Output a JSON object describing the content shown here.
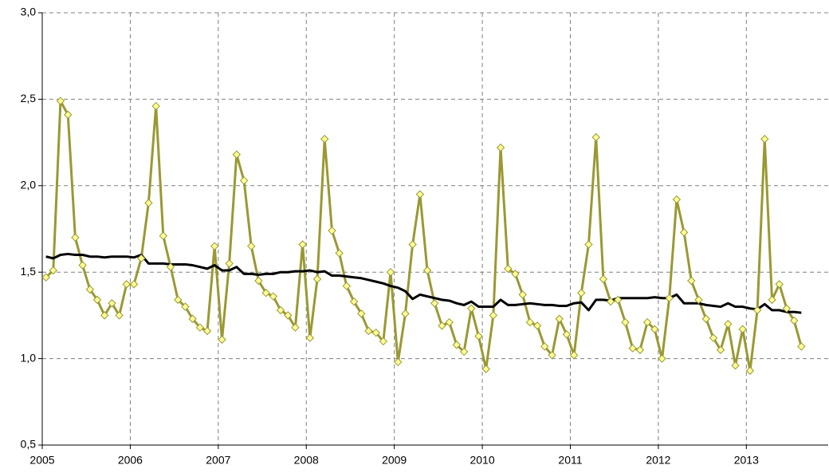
{
  "chart_data": {
    "type": "line",
    "x": [
      2005.042,
      2005.125,
      2005.208,
      2005.292,
      2005.375,
      2005.458,
      2005.542,
      2005.625,
      2005.708,
      2005.792,
      2005.875,
      2005.958,
      2006.042,
      2006.125,
      2006.208,
      2006.292,
      2006.375,
      2006.458,
      2006.542,
      2006.625,
      2006.708,
      2006.792,
      2006.875,
      2006.958,
      2007.042,
      2007.125,
      2007.208,
      2007.292,
      2007.375,
      2007.458,
      2007.542,
      2007.625,
      2007.708,
      2007.792,
      2007.875,
      2007.958,
      2008.042,
      2008.125,
      2008.208,
      2008.292,
      2008.375,
      2008.458,
      2008.542,
      2008.625,
      2008.708,
      2008.792,
      2008.875,
      2008.958,
      2009.042,
      2009.125,
      2009.208,
      2009.292,
      2009.375,
      2009.458,
      2009.542,
      2009.625,
      2009.708,
      2009.792,
      2009.875,
      2009.958,
      2010.042,
      2010.125,
      2010.208,
      2010.292,
      2010.375,
      2010.458,
      2010.542,
      2010.625,
      2010.708,
      2010.792,
      2010.875,
      2010.958,
      2011.042,
      2011.125,
      2011.208,
      2011.292,
      2011.375,
      2011.458,
      2011.542,
      2011.625,
      2011.708,
      2011.792,
      2011.875,
      2011.958,
      2012.042,
      2012.125,
      2012.208,
      2012.292,
      2012.375,
      2012.458,
      2012.542,
      2012.625,
      2012.708,
      2012.792,
      2012.875,
      2012.958,
      2013.042,
      2013.125,
      2013.208,
      2013.292,
      2013.375,
      2013.458,
      2013.542,
      2013.625
    ],
    "series": [
      {
        "color": "#999933",
        "marker": "diamond",
        "marker_fill": "#ffff99",
        "values": [
          1.47,
          1.51,
          2.49,
          2.41,
          1.7,
          1.54,
          1.4,
          1.34,
          1.25,
          1.32,
          1.25,
          1.43,
          1.43,
          1.58,
          1.9,
          2.46,
          1.71,
          1.53,
          1.34,
          1.3,
          1.23,
          1.18,
          1.16,
          1.65,
          1.11,
          1.55,
          2.18,
          2.03,
          1.65,
          1.45,
          1.38,
          1.36,
          1.28,
          1.25,
          1.18,
          1.66,
          1.12,
          1.46,
          2.27,
          1.74,
          1.61,
          1.42,
          1.33,
          1.26,
          1.16,
          1.15,
          1.1,
          1.5,
          0.98,
          1.26,
          1.66,
          1.95,
          1.51,
          1.32,
          1.19,
          1.21,
          1.08,
          1.04,
          1.29,
          1.13,
          0.94,
          1.25,
          2.22,
          1.52,
          1.49,
          1.37,
          1.21,
          1.19,
          1.07,
          1.02,
          1.23,
          1.14,
          1.02,
          1.38,
          1.66,
          2.28,
          1.46,
          1.33,
          1.34,
          1.21,
          1.06,
          1.05,
          1.21,
          1.17,
          1.0,
          1.35,
          1.92,
          1.73,
          1.45,
          1.34,
          1.23,
          1.12,
          1.05,
          1.2,
          0.96,
          1.17,
          0.93,
          1.28,
          2.27,
          1.34,
          1.43,
          1.29,
          1.22,
          1.07
        ]
      },
      {
        "color": "#000000",
        "values": [
          1.59,
          1.58,
          1.6,
          1.605,
          1.6,
          1.6,
          1.59,
          1.59,
          1.585,
          1.59,
          1.59,
          1.59,
          1.585,
          1.6,
          1.55,
          1.55,
          1.55,
          1.545,
          1.545,
          1.545,
          1.54,
          1.53,
          1.52,
          1.54,
          1.51,
          1.51,
          1.53,
          1.49,
          1.49,
          1.485,
          1.49,
          1.49,
          1.5,
          1.5,
          1.505,
          1.505,
          1.51,
          1.5,
          1.505,
          1.48,
          1.48,
          1.475,
          1.47,
          1.465,
          1.455,
          1.445,
          1.435,
          1.42,
          1.41,
          1.39,
          1.345,
          1.37,
          1.36,
          1.35,
          1.34,
          1.335,
          1.32,
          1.31,
          1.33,
          1.3,
          1.3,
          1.3,
          1.34,
          1.31,
          1.31,
          1.315,
          1.32,
          1.315,
          1.31,
          1.31,
          1.305,
          1.305,
          1.32,
          1.325,
          1.28,
          1.34,
          1.34,
          1.335,
          1.35,
          1.35,
          1.35,
          1.35,
          1.35,
          1.355,
          1.35,
          1.35,
          1.37,
          1.32,
          1.32,
          1.32,
          1.31,
          1.305,
          1.3,
          1.32,
          1.3,
          1.3,
          1.29,
          1.285,
          1.315,
          1.28,
          1.28,
          1.27,
          1.27,
          1.265
        ]
      }
    ],
    "xlim": [
      2005,
      2013.93
    ],
    "xticks": [
      2005,
      2006,
      2007,
      2008,
      2009,
      2010,
      2011,
      2012,
      2013
    ],
    "ylim": [
      0.5,
      3.0
    ],
    "yticks": [
      {
        "value": 0.5,
        "label": "0,5"
      },
      {
        "value": 1.0,
        "label": "1,0"
      },
      {
        "value": 1.5,
        "label": "1,5"
      },
      {
        "value": 2.0,
        "label": "2,0"
      },
      {
        "value": 2.5,
        "label": "2,5"
      },
      {
        "value": 3.0,
        "label": "3,0"
      }
    ],
    "grid": true
  }
}
